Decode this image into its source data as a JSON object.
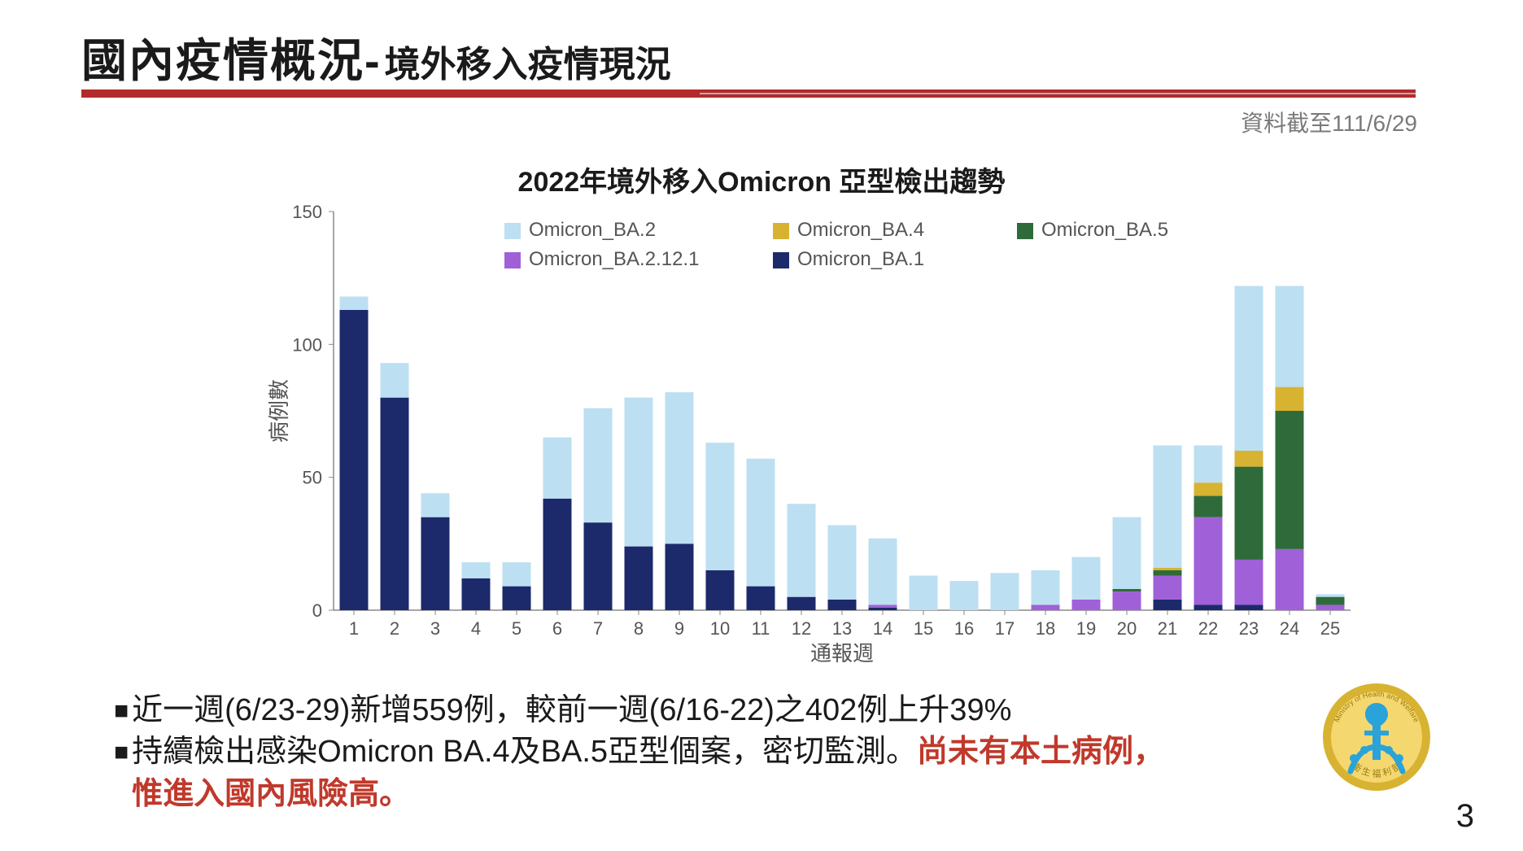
{
  "title_main": "國內疫情概況-",
  "title_sub": "境外移入疫情現況",
  "date_note": "資料截至111/6/29",
  "chart": {
    "title": "2022年境外移入Omicron 亞型檢出趨勢",
    "type": "stacked-bar",
    "xlabel": "通報週",
    "ylabel": "病例數",
    "ylim": [
      0,
      150
    ],
    "ytick_step": 50,
    "bar_width_ratio": 0.7,
    "background_color": "#ffffff",
    "axis_color": "#888888",
    "text_color": "#555555",
    "categories": [
      "1",
      "2",
      "3",
      "4",
      "5",
      "6",
      "7",
      "8",
      "9",
      "10",
      "11",
      "12",
      "13",
      "14",
      "15",
      "16",
      "17",
      "18",
      "19",
      "20",
      "21",
      "22",
      "23",
      "24",
      "25"
    ],
    "series": [
      {
        "name": "Omicron_BA.2",
        "color": "#bcdff2"
      },
      {
        "name": "Omicron_BA.4",
        "color": "#d7b331"
      },
      {
        "name": "Omicron_BA.5",
        "color": "#2f6b3a"
      },
      {
        "name": "Omicron_BA.2.12.1",
        "color": "#a060d8"
      },
      {
        "name": "Omicron_BA.1",
        "color": "#1c2a6b"
      }
    ],
    "legend_layout": [
      [
        "Omicron_BA.2",
        "Omicron_BA.4",
        "Omicron_BA.5"
      ],
      [
        "Omicron_BA.2.12.1",
        "Omicron_BA.1"
      ]
    ],
    "stack_order": [
      "Omicron_BA.1",
      "Omicron_BA.2.12.1",
      "Omicron_BA.5",
      "Omicron_BA.4",
      "Omicron_BA.2"
    ],
    "data": {
      "Omicron_BA.1": [
        113,
        80,
        35,
        12,
        9,
        42,
        33,
        24,
        25,
        15,
        9,
        5,
        4,
        1,
        0,
        0,
        0,
        0,
        0,
        0,
        4,
        2,
        2,
        0,
        0
      ],
      "Omicron_BA.2.12.1": [
        0,
        0,
        0,
        0,
        0,
        0,
        0,
        0,
        0,
        0,
        0,
        0,
        0,
        1,
        0,
        0,
        0,
        2,
        4,
        7,
        9,
        33,
        17,
        23,
        2
      ],
      "Omicron_BA.5": [
        0,
        0,
        0,
        0,
        0,
        0,
        0,
        0,
        0,
        0,
        0,
        0,
        0,
        0,
        0,
        0,
        0,
        0,
        0,
        1,
        2,
        8,
        35,
        52,
        3
      ],
      "Omicron_BA.4": [
        0,
        0,
        0,
        0,
        0,
        0,
        0,
        0,
        0,
        0,
        0,
        0,
        0,
        0,
        0,
        0,
        0,
        0,
        0,
        0,
        1,
        5,
        6,
        9,
        0
      ],
      "Omicron_BA.2": [
        5,
        13,
        9,
        6,
        9,
        23,
        43,
        56,
        57,
        48,
        48,
        35,
        28,
        25,
        13,
        11,
        14,
        13,
        16,
        27,
        46,
        14,
        62,
        38,
        1
      ]
    }
  },
  "bullets": {
    "b1": "近一週(6/23-29)新增559例，較前一週(6/16-22)之402例上升39%",
    "b2a": "持續檢出感染Omicron  BA.4及BA.5亞型個案，密切監測。",
    "b2b": "尚未有本土病例，",
    "b2c": "惟進入國內風險高。"
  },
  "page_number": "3",
  "logo": {
    "outer_color": "#d7b331",
    "inner_color": "#f5d770",
    "figure_color": "#2aa3d9",
    "top_text": "Ministry of Health and Welfare",
    "bottom_text": "衛 生 福 利 部"
  }
}
